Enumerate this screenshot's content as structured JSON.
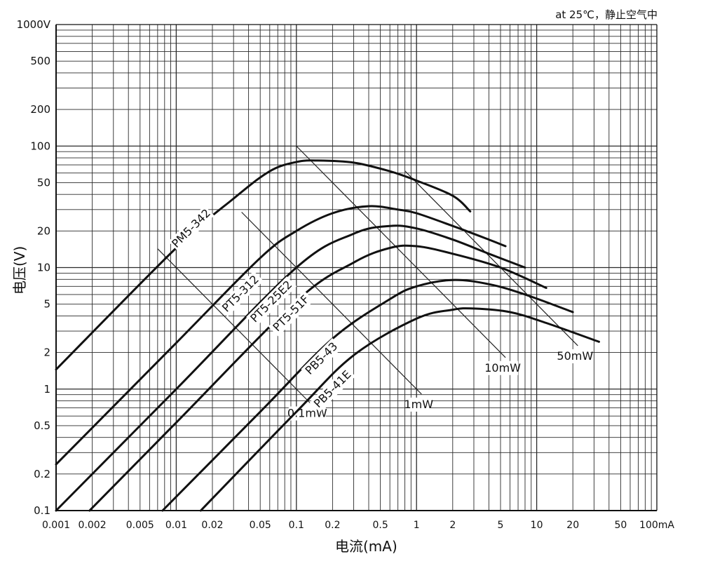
{
  "chart_data": {
    "type": "line",
    "title": "",
    "condition_note": "at 25℃，静止空气中",
    "xlabel": "电流(mA)",
    "ylabel": "电压(V)",
    "x_scale": "log",
    "y_scale": "log",
    "xlim": [
      0.001,
      100
    ],
    "ylim": [
      0.1,
      1000
    ],
    "grid": true,
    "x_ticks": [
      {
        "value": 0.001,
        "label": "0.001"
      },
      {
        "value": 0.002,
        "label": "0.002"
      },
      {
        "value": 0.005,
        "label": "0.005"
      },
      {
        "value": 0.01,
        "label": "0.01"
      },
      {
        "value": 0.02,
        "label": "0.02"
      },
      {
        "value": 0.05,
        "label": "0.05"
      },
      {
        "value": 0.1,
        "label": "0.1"
      },
      {
        "value": 0.2,
        "label": "0.2"
      },
      {
        "value": 0.5,
        "label": "0.5"
      },
      {
        "value": 1,
        "label": "1"
      },
      {
        "value": 2,
        "label": "2"
      },
      {
        "value": 5,
        "label": "5"
      },
      {
        "value": 10,
        "label": "10"
      },
      {
        "value": 20,
        "label": "20"
      },
      {
        "value": 50,
        "label": "50"
      },
      {
        "value": 100,
        "label": "100mA"
      }
    ],
    "y_ticks": [
      {
        "value": 0.1,
        "label": "0.1"
      },
      {
        "value": 0.2,
        "label": "0.2"
      },
      {
        "value": 0.5,
        "label": "0.5"
      },
      {
        "value": 1,
        "label": "1"
      },
      {
        "value": 2,
        "label": "2"
      },
      {
        "value": 5,
        "label": "5"
      },
      {
        "value": 10,
        "label": "10"
      },
      {
        "value": 20,
        "label": "20"
      },
      {
        "value": 50,
        "label": "50"
      },
      {
        "value": 100,
        "label": "100"
      },
      {
        "value": 200,
        "label": "200"
      },
      {
        "value": 500,
        "label": "500"
      },
      {
        "value": 1000,
        "label": "1000V"
      }
    ],
    "series": [
      {
        "name": "PM5-342",
        "points": [
          [
            0.001,
            1.45
          ],
          [
            0.01,
            14.5
          ],
          [
            0.03,
            37
          ],
          [
            0.06,
            62
          ],
          [
            0.1,
            74
          ],
          [
            0.15,
            76
          ],
          [
            0.3,
            73
          ],
          [
            0.6,
            62
          ],
          [
            1,
            52
          ],
          [
            2,
            39
          ],
          [
            2.8,
            29
          ]
        ]
      },
      {
        "name": "PT5-312",
        "points": [
          [
            0.001,
            0.24
          ],
          [
            0.01,
            2.4
          ],
          [
            0.05,
            12
          ],
          [
            0.1,
            20
          ],
          [
            0.2,
            28
          ],
          [
            0.4,
            32
          ],
          [
            0.7,
            30
          ],
          [
            1,
            28
          ],
          [
            2,
            22
          ],
          [
            4,
            17
          ],
          [
            5.5,
            15
          ]
        ]
      },
      {
        "name": "PT5-25E2",
        "points": [
          [
            0.001,
            0.1
          ],
          [
            0.01,
            1
          ],
          [
            0.1,
            10
          ],
          [
            0.3,
            19
          ],
          [
            0.6,
            22
          ],
          [
            1,
            21
          ],
          [
            2,
            17
          ],
          [
            4,
            13
          ],
          [
            8,
            10
          ]
        ]
      },
      {
        "name": "PT5-51F",
        "points": [
          [
            0.0019,
            0.1
          ],
          [
            0.01,
            0.53
          ],
          [
            0.1,
            5.3
          ],
          [
            0.3,
            11
          ],
          [
            0.6,
            14.5
          ],
          [
            1,
            15
          ],
          [
            2,
            13
          ],
          [
            5,
            10
          ],
          [
            12,
            6.8
          ]
        ]
      },
      {
        "name": "PB5-43",
        "points": [
          [
            0.0077,
            0.1
          ],
          [
            0.05,
            0.65
          ],
          [
            0.2,
            2.6
          ],
          [
            0.6,
            5.5
          ],
          [
            1,
            7
          ],
          [
            2,
            7.9
          ],
          [
            4,
            7.3
          ],
          [
            8,
            6
          ],
          [
            20,
            4.3
          ]
        ]
      },
      {
        "name": "PB5-41E",
        "points": [
          [
            0.016,
            0.1
          ],
          [
            0.1,
            0.65
          ],
          [
            0.3,
            1.9
          ],
          [
            1,
            3.8
          ],
          [
            2,
            4.5
          ],
          [
            3,
            4.6
          ],
          [
            6,
            4.3
          ],
          [
            12,
            3.5
          ],
          [
            33,
            2.45
          ]
        ]
      }
    ],
    "power_lines": [
      {
        "label": "0.1mW",
        "value_mW": 0.1,
        "x_range": [
          0.007,
          0.13
        ]
      },
      {
        "label": "1mW",
        "value_mW": 1,
        "x_range": [
          0.035,
          1.1
        ]
      },
      {
        "label": "10mW",
        "value_mW": 10,
        "x_range": [
          0.1,
          5.5
        ]
      },
      {
        "label": "50mW",
        "value_mW": 50,
        "x_range": [
          0.8,
          22
        ]
      }
    ],
    "colors": {
      "curve": "#111111",
      "grid": "#2a2a2a",
      "power_line": "#222222",
      "background": "#ffffff"
    }
  }
}
